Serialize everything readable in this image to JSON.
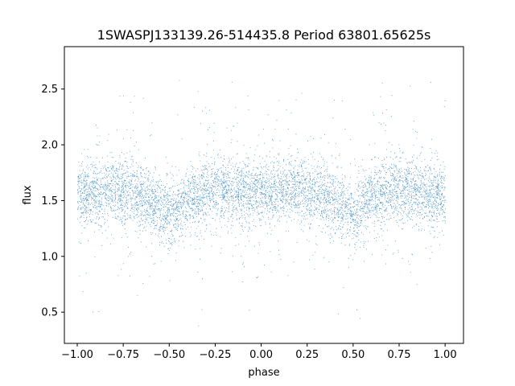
{
  "chart_data": {
    "type": "scatter",
    "title": "1SWASPJ133139.26-514435.8 Period 63801.65625s",
    "xlabel": "phase",
    "ylabel": "flux",
    "xlim": [
      -1.07,
      1.1
    ],
    "ylim": [
      0.22,
      2.88
    ],
    "x_ticks": [
      -1.0,
      -0.75,
      -0.5,
      -0.25,
      0.0,
      0.25,
      0.5,
      0.75,
      1.0
    ],
    "x_tick_labels": [
      "−1.00",
      "−0.75",
      "−0.50",
      "−0.25",
      "0.00",
      "0.25",
      "0.50",
      "0.75",
      "1.00"
    ],
    "y_ticks": [
      0.5,
      1.0,
      1.5,
      2.0,
      2.5
    ],
    "y_tick_labels": [
      "0.5",
      "1.0",
      "1.5",
      "2.0",
      "2.5"
    ],
    "grid": false,
    "legend": "none",
    "marker_color": "#1f77b4",
    "series": [
      {
        "name": "",
        "phase_range": [
          -1.0,
          1.0
        ],
        "x": [
          -1.0,
          -0.9,
          -0.8,
          -0.7,
          -0.6,
          -0.55,
          -0.5,
          -0.45,
          -0.4,
          -0.3,
          -0.2,
          -0.1,
          0.0,
          0.1,
          0.2,
          0.3,
          0.4,
          0.45,
          0.5,
          0.55,
          0.6,
          0.7,
          0.8,
          0.9,
          1.0
        ],
        "median_flux": [
          1.55,
          1.58,
          1.6,
          1.58,
          1.5,
          1.43,
          1.36,
          1.43,
          1.52,
          1.58,
          1.6,
          1.58,
          1.55,
          1.58,
          1.6,
          1.58,
          1.5,
          1.43,
          1.36,
          1.43,
          1.52,
          1.58,
          1.6,
          1.58,
          1.55
        ],
        "flux_min": 0.33,
        "flux_max": 2.8
      }
    ]
  }
}
